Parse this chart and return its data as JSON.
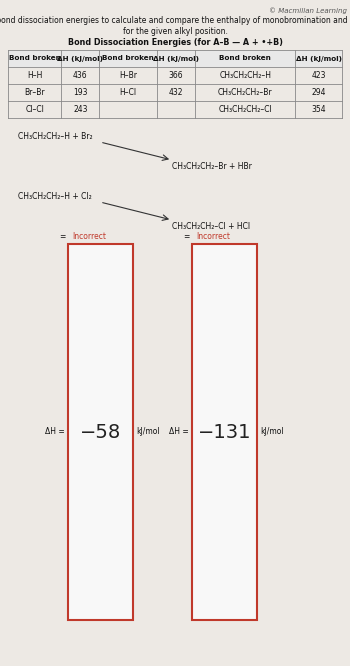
{
  "copyright": "© Macmillan Learning",
  "title1": "Use the table of bond dissociation energies to calculate and compare the enthalpy of monobromination and monochlorination",
  "title2": "for the given alkyl position.",
  "table_header": "Bond Dissociation Energies (for A–B — A + •+B)",
  "col_headers": [
    "Bond broken",
    "ΔH (kJ/mol)",
    "Bond broken",
    "ΔH (kJ/mol)",
    "Bond broken",
    "ΔH (kJ/mol)"
  ],
  "table_rows": [
    [
      "H–H",
      "436",
      "H–Br",
      "366",
      "CH₃CH₂CH₂–H",
      "423"
    ],
    [
      "Br–Br",
      "193",
      "H–Cl",
      "432",
      "CH₃CH₂CH₂–Br",
      "294"
    ],
    [
      "Cl–Cl",
      "243",
      "",
      "",
      "CH₃CH₂CH₂–Cl",
      "354"
    ]
  ],
  "reaction1_left": "CH₃CH₂CH₂–H + Br₂",
  "reaction1_right": "CH₃CH₂CH₂–Br + HBr",
  "reaction2_left": "CH₃CH₂CH₂–H + Cl₂",
  "reaction2_right": "CH₃CH₂CH₂–Cl + HCl",
  "dH_label": "ΔH =",
  "dH1_value": "−58",
  "dH2_value": "−131",
  "incorrect": "Incorrect",
  "units": "kJ/mol",
  "bg_color": "#ede9e4",
  "table_bg": "#ffffff",
  "box_border": "#c0392b",
  "box_fill": "#f8f8f8",
  "incorrect_color": "#c0392b",
  "text_color": "#111111",
  "copyright_color": "#555555"
}
